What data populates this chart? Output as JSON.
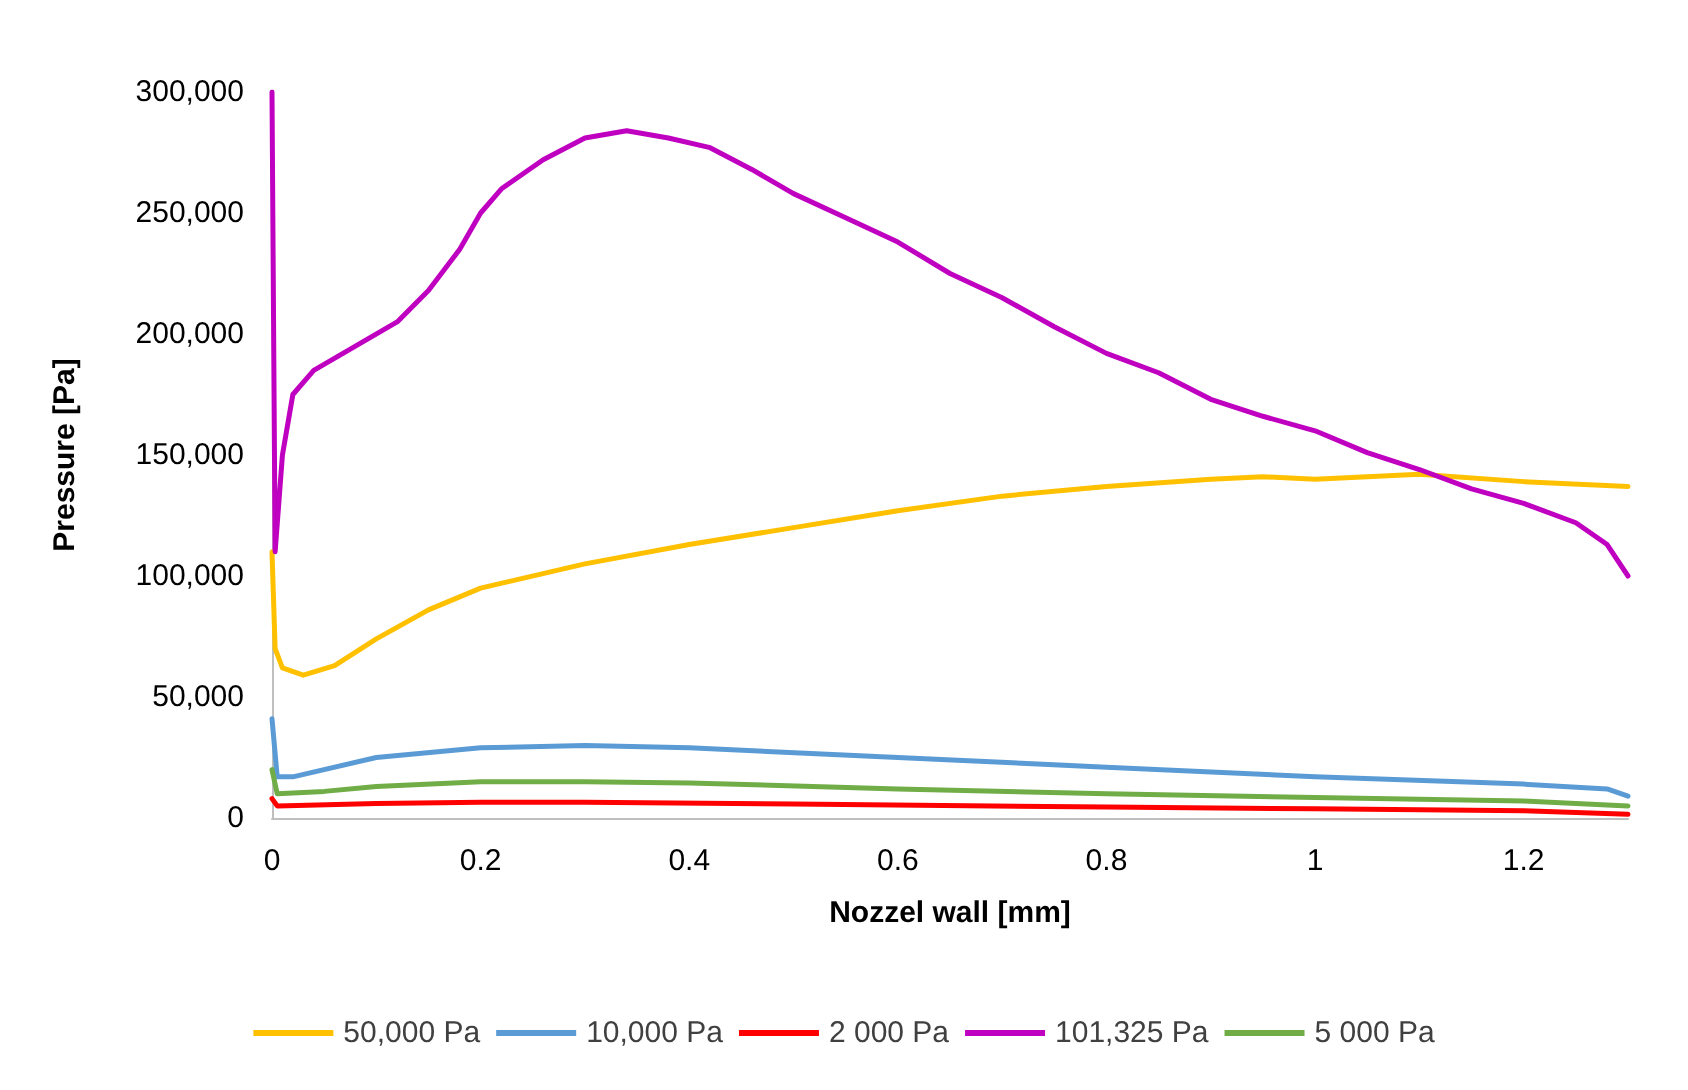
{
  "chart_data": {
    "type": "line",
    "xlabel": "Nozzel wall [mm]",
    "ylabel": "Pressure [Pa]",
    "xlim": [
      0,
      1.3
    ],
    "xticks": [
      0,
      0.2,
      0.4,
      0.6,
      0.8,
      1,
      1.2
    ],
    "ylim": [
      0,
      300000
    ],
    "yticks": [
      {
        "value": 0,
        "label": "0"
      },
      {
        "value": 50000,
        "label": "50,000"
      },
      {
        "value": 100000,
        "label": "100,000"
      },
      {
        "value": 150000,
        "label": "150,000"
      },
      {
        "value": 200000,
        "label": "200,000"
      },
      {
        "value": 250000,
        "label": "250,000"
      },
      {
        "value": 300000,
        "label": "300,000"
      }
    ],
    "grid": false,
    "legend": "bottom",
    "marker": "none",
    "line_style": "solid",
    "series": [
      {
        "name": "50,000 Pa",
        "color": "#ffc000",
        "x": [
          0,
          0.003,
          0.01,
          0.03,
          0.06,
          0.1,
          0.15,
          0.2,
          0.3,
          0.4,
          0.5,
          0.6,
          0.7,
          0.8,
          0.9,
          0.95,
          1.0,
          1.1,
          1.2,
          1.3
        ],
        "values": [
          110000,
          70000,
          62000,
          59000,
          63000,
          74000,
          86000,
          95000,
          105000,
          113000,
          120000,
          127000,
          133000,
          137000,
          140000,
          141000,
          140000,
          142000,
          139000,
          137000
        ]
      },
      {
        "name": "10,000 Pa",
        "color": "#5b9bd5",
        "x": [
          0,
          0.005,
          0.02,
          0.1,
          0.2,
          0.3,
          0.4,
          0.6,
          0.8,
          1.0,
          1.2,
          1.28,
          1.3
        ],
        "values": [
          41000,
          17000,
          17000,
          25000,
          29000,
          30000,
          29000,
          25000,
          21000,
          17000,
          14000,
          12000,
          9000
        ]
      },
      {
        "name": "2 000 Pa",
        "color": "#ff0000",
        "x": [
          0,
          0.005,
          0.1,
          0.2,
          0.3,
          0.5,
          0.8,
          1.0,
          1.2,
          1.3
        ],
        "values": [
          8000,
          5000,
          6000,
          6500,
          6500,
          5800,
          4500,
          3800,
          3000,
          1500
        ]
      },
      {
        "name": "101,325 Pa",
        "color": "#c000c0",
        "x": [
          0,
          0.003,
          0.01,
          0.02,
          0.04,
          0.08,
          0.12,
          0.15,
          0.18,
          0.2,
          0.22,
          0.26,
          0.3,
          0.34,
          0.38,
          0.42,
          0.46,
          0.5,
          0.55,
          0.6,
          0.65,
          0.7,
          0.75,
          0.8,
          0.85,
          0.9,
          0.95,
          1.0,
          1.05,
          1.1,
          1.15,
          1.2,
          1.25,
          1.28,
          1.3
        ],
        "values": [
          300000,
          110000,
          150000,
          175000,
          185000,
          195000,
          205000,
          218000,
          235000,
          250000,
          260000,
          272000,
          281000,
          284000,
          281000,
          277000,
          268000,
          258000,
          248000,
          238000,
          225000,
          215000,
          203000,
          192000,
          184000,
          173000,
          166000,
          160000,
          151000,
          144000,
          136000,
          130000,
          122000,
          113000,
          100000
        ]
      },
      {
        "name": "5 000 Pa",
        "color": "#70ad47",
        "x": [
          0,
          0.005,
          0.05,
          0.1,
          0.2,
          0.3,
          0.4,
          0.6,
          0.8,
          1.0,
          1.2,
          1.3
        ],
        "values": [
          20000,
          10000,
          11000,
          13000,
          15000,
          15000,
          14500,
          12000,
          10000,
          8500,
          7000,
          5000
        ]
      }
    ]
  }
}
